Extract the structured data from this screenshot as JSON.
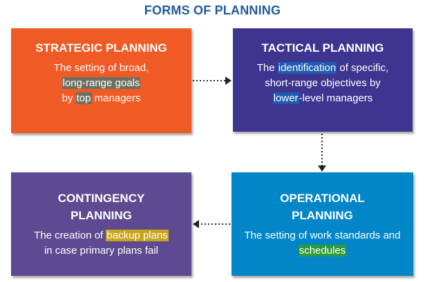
{
  "title": "FORMS OF PLANNING",
  "colors": {
    "title": "#1f5a9a",
    "strategic": "#f05a24",
    "tactical": "#3d3590",
    "contingency": "#5d4a91",
    "operational": "#0286c8",
    "highlight_gray": "#6b7061",
    "highlight_blue": "#1f5bb0",
    "highlight_yellow": "#c9a41c",
    "highlight_green": "#2e9a3a",
    "arrow": "#222222"
  },
  "boxes": {
    "strategic": {
      "heading": "STRATEGIC PLANNING",
      "text_1": "The setting of broad,",
      "hl_1": "long-range goals",
      "text_2": "by",
      "hl_2": "top",
      "text_3": "managers"
    },
    "tactical": {
      "heading": "TACTICAL PLANNING",
      "text_1": "The",
      "hl_1": "identification",
      "text_2": "of specific, short-range objectives by",
      "hl_2": "lower",
      "text_3": "-level managers"
    },
    "contingency": {
      "heading_1": "CONTINGENCY",
      "heading_2": "PLANNING",
      "text_1": "The creation of",
      "hl_1": "backup plans",
      "text_2": "in case primary plans fail"
    },
    "operational": {
      "heading_1": "OPERATIONAL",
      "heading_2": "PLANNING",
      "text_1": "The setting of work standards and",
      "hl_1": "schedules"
    }
  }
}
